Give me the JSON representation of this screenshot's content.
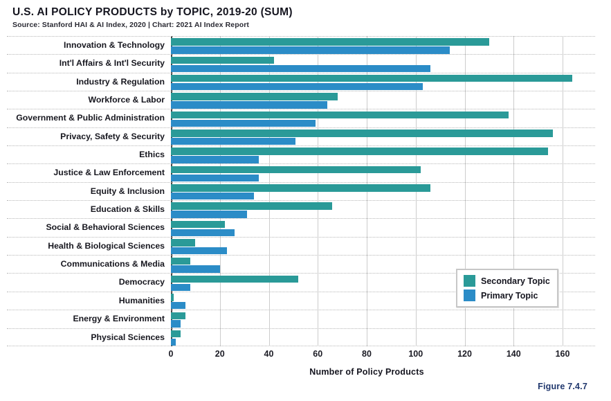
{
  "header": {
    "title": "U.S. AI POLICY PRODUCTS by TOPIC, 2019-20 (SUM)",
    "source": "Source: Stanford HAI & AI Index, 2020 | Chart: 2021 AI Index Report"
  },
  "figure_label": "Figure 7.4.7",
  "colors": {
    "secondary_topic": "#2a9a98",
    "primary_topic": "#2b8cc7",
    "figure_label_text": "#21386e",
    "gridline": "#cccccc",
    "zero_axis": "#474747"
  },
  "chart_data": {
    "type": "bar",
    "orientation": "horizontal",
    "title": "U.S. AI POLICY PRODUCTS by TOPIC, 2019-20 (SUM)",
    "xlabel": "Number of Policy Products",
    "ylabel": "",
    "xlim": [
      0,
      173
    ],
    "xticks": [
      0,
      20,
      40,
      60,
      80,
      100,
      120,
      140,
      160
    ],
    "grid": "vertical-solid, horizontal-dotted-category-separators",
    "legend_position": "inside-lower-right",
    "categories": [
      "Innovation & Technology",
      "Int'l Affairs & Int'l Security",
      "Industry & Regulation",
      "Workforce & Labor",
      "Government & Public Administration",
      "Privacy, Safety & Security",
      "Ethics",
      "Justice & Law Enforcement",
      "Equity & Inclusion",
      "Education & Skills",
      "Social & Behavioral Sciences",
      "Health & Biological Sciences",
      "Communications & Media",
      "Democracy",
      "Humanities",
      "Energy & Environment",
      "Physical Sciences"
    ],
    "series": [
      {
        "name": "Secondary Topic",
        "color": "#2a9a98",
        "values": [
          130,
          42,
          164,
          68,
          138,
          156,
          154,
          102,
          106,
          66,
          22,
          10,
          8,
          52,
          1,
          6,
          4
        ]
      },
      {
        "name": "Primary Topic",
        "color": "#2b8cc7",
        "values": [
          114,
          106,
          103,
          64,
          59,
          51,
          36,
          36,
          34,
          31,
          26,
          23,
          20,
          8,
          6,
          4,
          2
        ]
      }
    ]
  }
}
